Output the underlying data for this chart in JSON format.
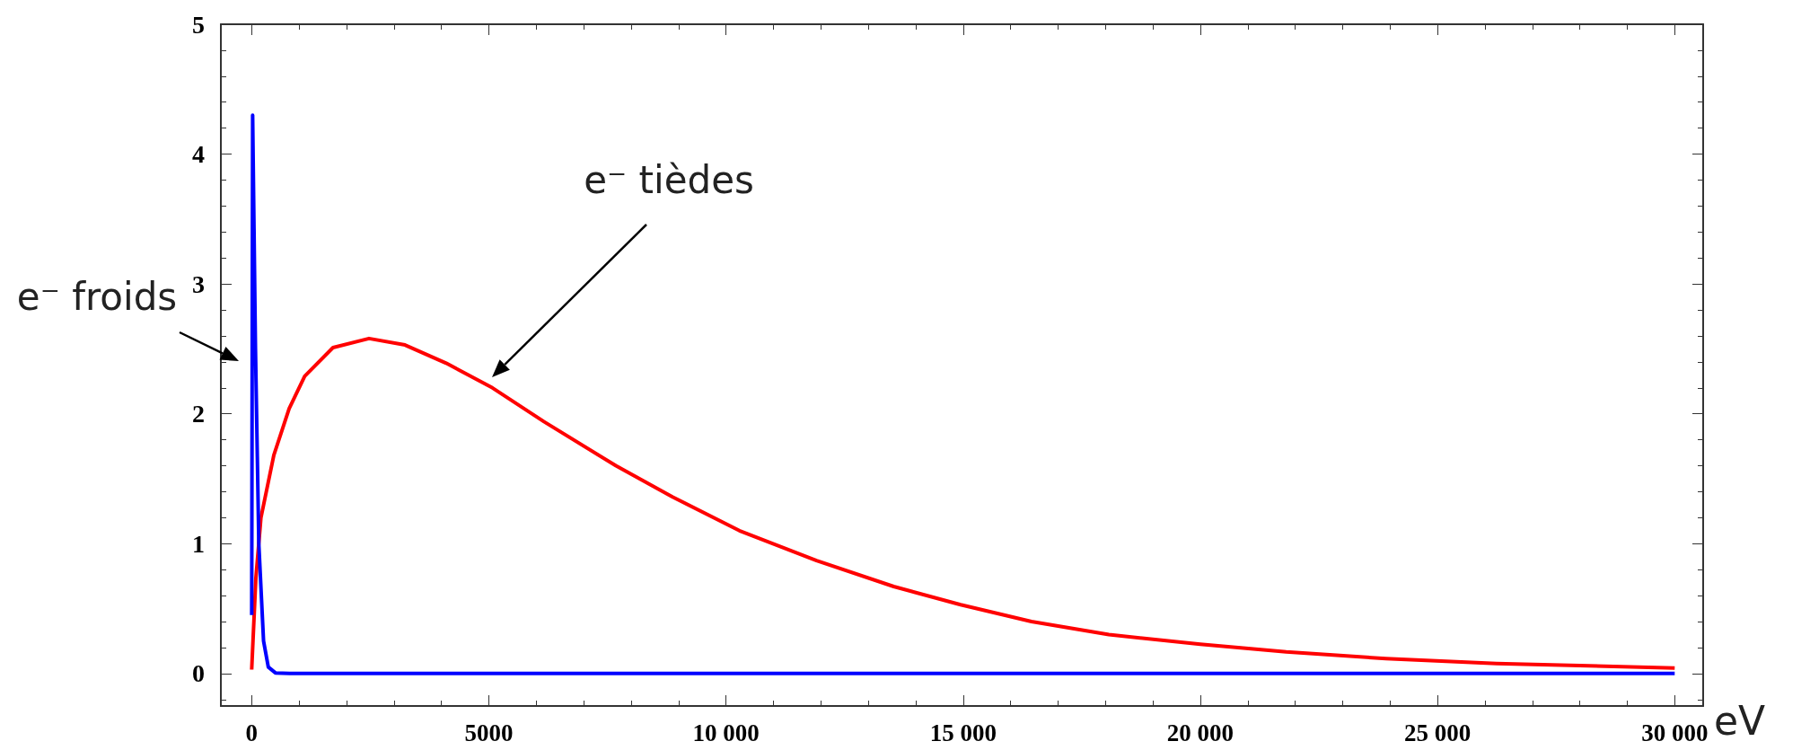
{
  "chart_data": {
    "type": "line",
    "xlabel": "eV",
    "marker": "none",
    "xlim": [
      -650,
      30600
    ],
    "ylim": [
      -0.25,
      5
    ],
    "xticks": [
      0,
      5000,
      {
        "value": 10000,
        "label": "10 000"
      },
      {
        "value": 15000,
        "label": "15 000"
      },
      {
        "value": 20000,
        "label": "20 000"
      },
      {
        "value": 25000,
        "label": "25 000"
      },
      {
        "value": 30000,
        "label": "30 000"
      }
    ],
    "yticks": [
      0,
      1,
      2,
      3,
      4,
      5
    ],
    "series": [
      {
        "color": "#ff0000",
        "x": [
          0,
          87,
          195,
          466,
          790,
          1117,
          1714,
          2473,
          3232,
          4100,
          5076,
          6160,
          7679,
          8872,
          10282,
          11909,
          13536,
          14946,
          16440,
          18071,
          20000,
          21810,
          23915,
          26245,
          30000
        ],
        "values": [
          0.03,
          0.73,
          1.2,
          1.68,
          2.04,
          2.29,
          2.51,
          2.58,
          2.53,
          2.39,
          2.2,
          1.94,
          1.6,
          1.36,
          1.1,
          0.87,
          0.67,
          0.53,
          0.4,
          0.3,
          0.225,
          0.166,
          0.115,
          0.077,
          0.042
        ]
      },
      {
        "color": "#0000ff",
        "x": [
          0,
          20,
          80,
          150,
          250,
          350,
          500,
          800,
          30000
        ],
        "values": [
          0.45,
          4.3,
          2.5,
          1.0,
          0.25,
          0.05,
          0.005,
          0,
          0
        ]
      }
    ],
    "annotations": [
      "e⁻ froids",
      "e⁻ tièdes"
    ]
  }
}
